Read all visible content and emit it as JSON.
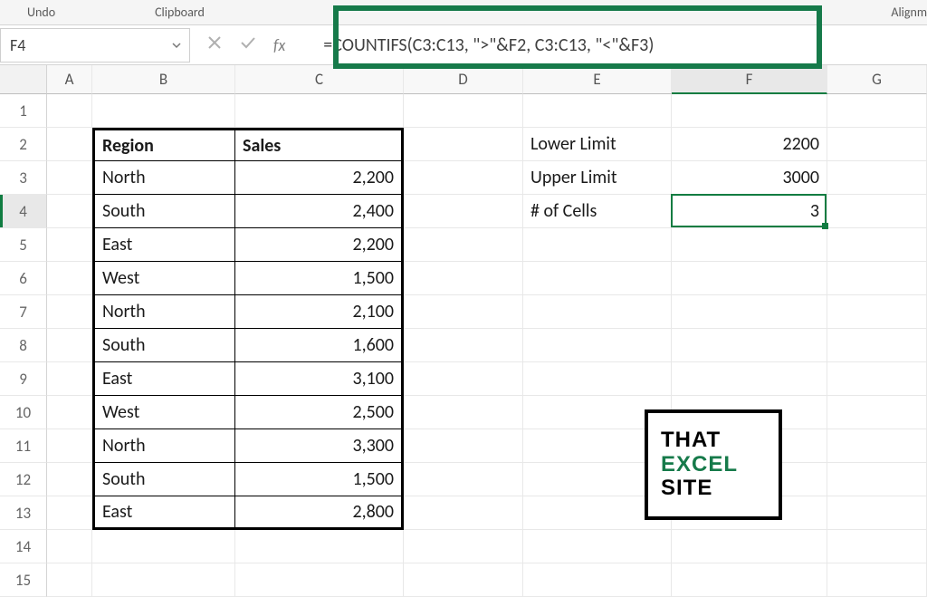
{
  "ribbon": {
    "undo": "Undo",
    "clipboard": "Clipboard",
    "alignment": "Alignm"
  },
  "formula_bar": {
    "cell_ref": "F4",
    "fx_label": "fx",
    "formula": "=COUNTIFS(C3:C13, \">\"&F2, C3:C13, \"<\"&F3)",
    "highlight_color": "#167a4a"
  },
  "columns": [
    "A",
    "B",
    "C",
    "D",
    "E",
    "F",
    "G"
  ],
  "row_count": 15,
  "active_row": 4,
  "active_col": "F",
  "table": {
    "headers": [
      "Region",
      "Sales"
    ],
    "rows": [
      {
        "region": "North",
        "sales": "2,200"
      },
      {
        "region": "South",
        "sales": "2,400"
      },
      {
        "region": "East",
        "sales": "2,200"
      },
      {
        "region": "West",
        "sales": "1,500"
      },
      {
        "region": "North",
        "sales": "2,100"
      },
      {
        "region": "South",
        "sales": "1,600"
      },
      {
        "region": "East",
        "sales": "3,100"
      },
      {
        "region": "West",
        "sales": "2,500"
      },
      {
        "region": "North",
        "sales": "3,300"
      },
      {
        "region": "South",
        "sales": "1,500"
      },
      {
        "region": "East",
        "sales": "2,800"
      }
    ]
  },
  "side_labels": {
    "lower": {
      "label": "Lower Limit",
      "value": "2200"
    },
    "upper": {
      "label": "Upper Limit",
      "value": "3000"
    },
    "count": {
      "label": "# of Cells",
      "value": "3"
    }
  },
  "logo": {
    "l1": "THAT",
    "l2": "EXCEL",
    "l3": "SITE"
  },
  "colors": {
    "excel_green": "#107c41",
    "border_black": "#000000",
    "grid_line": "#e8e8e8",
    "header_bg": "#f8f8f8"
  }
}
